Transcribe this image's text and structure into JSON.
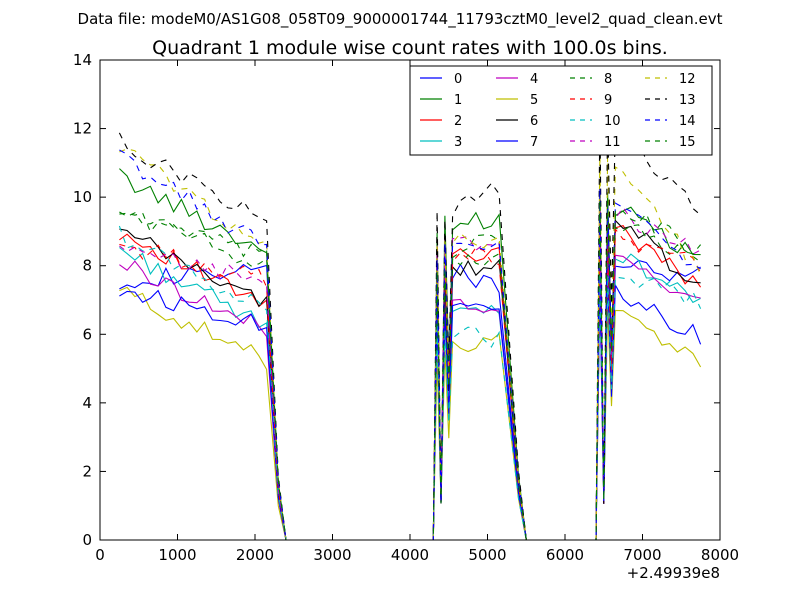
{
  "suptitle": "Data file: modeM0/AS1G08_058T09_9000001744_11793cztM0_level2_quad_clean.evt",
  "chart_data": {
    "type": "line",
    "title": "Quadrant 1 module wise count rates with 100.0s bins.",
    "xlabel": "",
    "ylabel": "",
    "x_offset_label": "+2.49939e8",
    "xlim": [
      0,
      8000
    ],
    "ylim": [
      0,
      14
    ],
    "xticks": [
      0,
      1000,
      2000,
      3000,
      4000,
      5000,
      6000,
      7000,
      8000
    ],
    "xtick_labels": [
      "0",
      "1000",
      "2000",
      "3000",
      "4000",
      "5000",
      "6000",
      "7000",
      "8000"
    ],
    "yticks": [
      0,
      2,
      4,
      6,
      8,
      10,
      12,
      14
    ],
    "ytick_labels": [
      "0",
      "2",
      "4",
      "6",
      "8",
      "10",
      "12",
      "14"
    ],
    "grid": false,
    "legend": {
      "placement": "top-right",
      "columns": 4,
      "entries": [
        "0",
        "1",
        "2",
        "3",
        "4",
        "5",
        "6",
        "7",
        "8",
        "9",
        "10",
        "11",
        "12",
        "13",
        "14",
        "15"
      ]
    },
    "segments": [
      {
        "start": 250,
        "step": 100,
        "count": 20,
        "drop": [
          2300,
          2400
        ]
      },
      {
        "start": 4350,
        "step": 100,
        "count": 9,
        "rise": [
          4400,
          4500
        ],
        "drop": [
          5400,
          5500
        ]
      },
      {
        "start": 6450,
        "step": 100,
        "count": 14,
        "rise": [
          6500,
          6600
        ]
      }
    ],
    "zero_x": [
      2400,
      2500,
      2600,
      2700,
      2800,
      2900,
      3000,
      3100,
      3200,
      3300,
      3400,
      3500,
      3600,
      3700,
      3800,
      3900,
      4000,
      4100,
      4200,
      4300,
      5500,
      5600,
      5700,
      5800,
      5900,
      6000,
      6100,
      6200,
      6300,
      6400
    ],
    "series": [
      {
        "name": "0",
        "color": "#0000ff",
        "dash": "solid",
        "levels": [
          7.6,
          8.0,
          8.0
        ],
        "trend": [
          0.2,
          -0.6,
          -0.3
        ]
      },
      {
        "name": "1",
        "color": "#008000",
        "dash": "solid",
        "levels": [
          10.6,
          9.2,
          10.0
        ],
        "trend": [
          -2.2,
          0.2,
          -1.8
        ]
      },
      {
        "name": "2",
        "color": "#ff0000",
        "dash": "solid",
        "levels": [
          9.0,
          8.5,
          9.4
        ],
        "trend": [
          -2.2,
          -0.2,
          -2.0
        ]
      },
      {
        "name": "3",
        "color": "#00bfbf",
        "dash": "solid",
        "levels": [
          8.5,
          6.5,
          8.6
        ],
        "trend": [
          -2.3,
          0.1,
          -1.6
        ]
      },
      {
        "name": "4",
        "color": "#bf00bf",
        "dash": "solid",
        "levels": [
          8.1,
          6.9,
          8.4
        ],
        "trend": [
          -2.0,
          -0.3,
          -1.4
        ]
      },
      {
        "name": "5",
        "color": "#bfbf00",
        "dash": "solid",
        "levels": [
          7.3,
          5.4,
          7.1
        ],
        "trend": [
          -2.1,
          0.5,
          -2.0
        ]
      },
      {
        "name": "6",
        "color": "#000000",
        "dash": "solid",
        "levels": [
          9.0,
          7.9,
          9.9
        ],
        "trend": [
          -2.1,
          0.0,
          -2.6
        ]
      },
      {
        "name": "7",
        "color": "#0000ff",
        "dash": "solid",
        "levels": [
          7.3,
          6.7,
          7.6
        ],
        "trend": [
          -1.0,
          0.1,
          -1.7
        ]
      },
      {
        "name": "8",
        "color": "#008000",
        "dash": "dashed",
        "levels": [
          9.6,
          8.4,
          9.4
        ],
        "trend": [
          -1.6,
          0.4,
          -1.2
        ]
      },
      {
        "name": "9",
        "color": "#ff0000",
        "dash": "dashed",
        "levels": [
          8.6,
          8.4,
          9.0
        ],
        "trend": [
          -1.0,
          -0.2,
          -1.0
        ]
      },
      {
        "name": "10",
        "color": "#00bfbf",
        "dash": "dashed",
        "levels": [
          8.9,
          6.2,
          8.0
        ],
        "trend": [
          -2.2,
          -0.4,
          -1.0
        ]
      },
      {
        "name": "11",
        "color": "#bf00bf",
        "dash": "dashed",
        "levels": [
          8.4,
          8.7,
          9.8
        ],
        "trend": [
          -0.8,
          -0.1,
          -1.4
        ]
      },
      {
        "name": "12",
        "color": "#bfbf00",
        "dash": "dashed",
        "levels": [
          11.5,
          8.6,
          11.5
        ],
        "trend": [
          -3.0,
          0.2,
          -3.6
        ]
      },
      {
        "name": "13",
        "color": "#000000",
        "dash": "dashed",
        "levels": [
          11.6,
          9.5,
          12.5
        ],
        "trend": [
          -2.3,
          0.8,
          -3.0
        ]
      },
      {
        "name": "14",
        "color": "#0000ff",
        "dash": "dashed",
        "levels": [
          11.2,
          8.4,
          10.2
        ],
        "trend": [
          -2.7,
          0.3,
          -2.3
        ]
      },
      {
        "name": "15",
        "color": "#008000",
        "dash": "dashed",
        "levels": [
          9.6,
          8.1,
          10.0
        ],
        "trend": [
          -1.4,
          0.2,
          -1.6
        ]
      }
    ]
  }
}
